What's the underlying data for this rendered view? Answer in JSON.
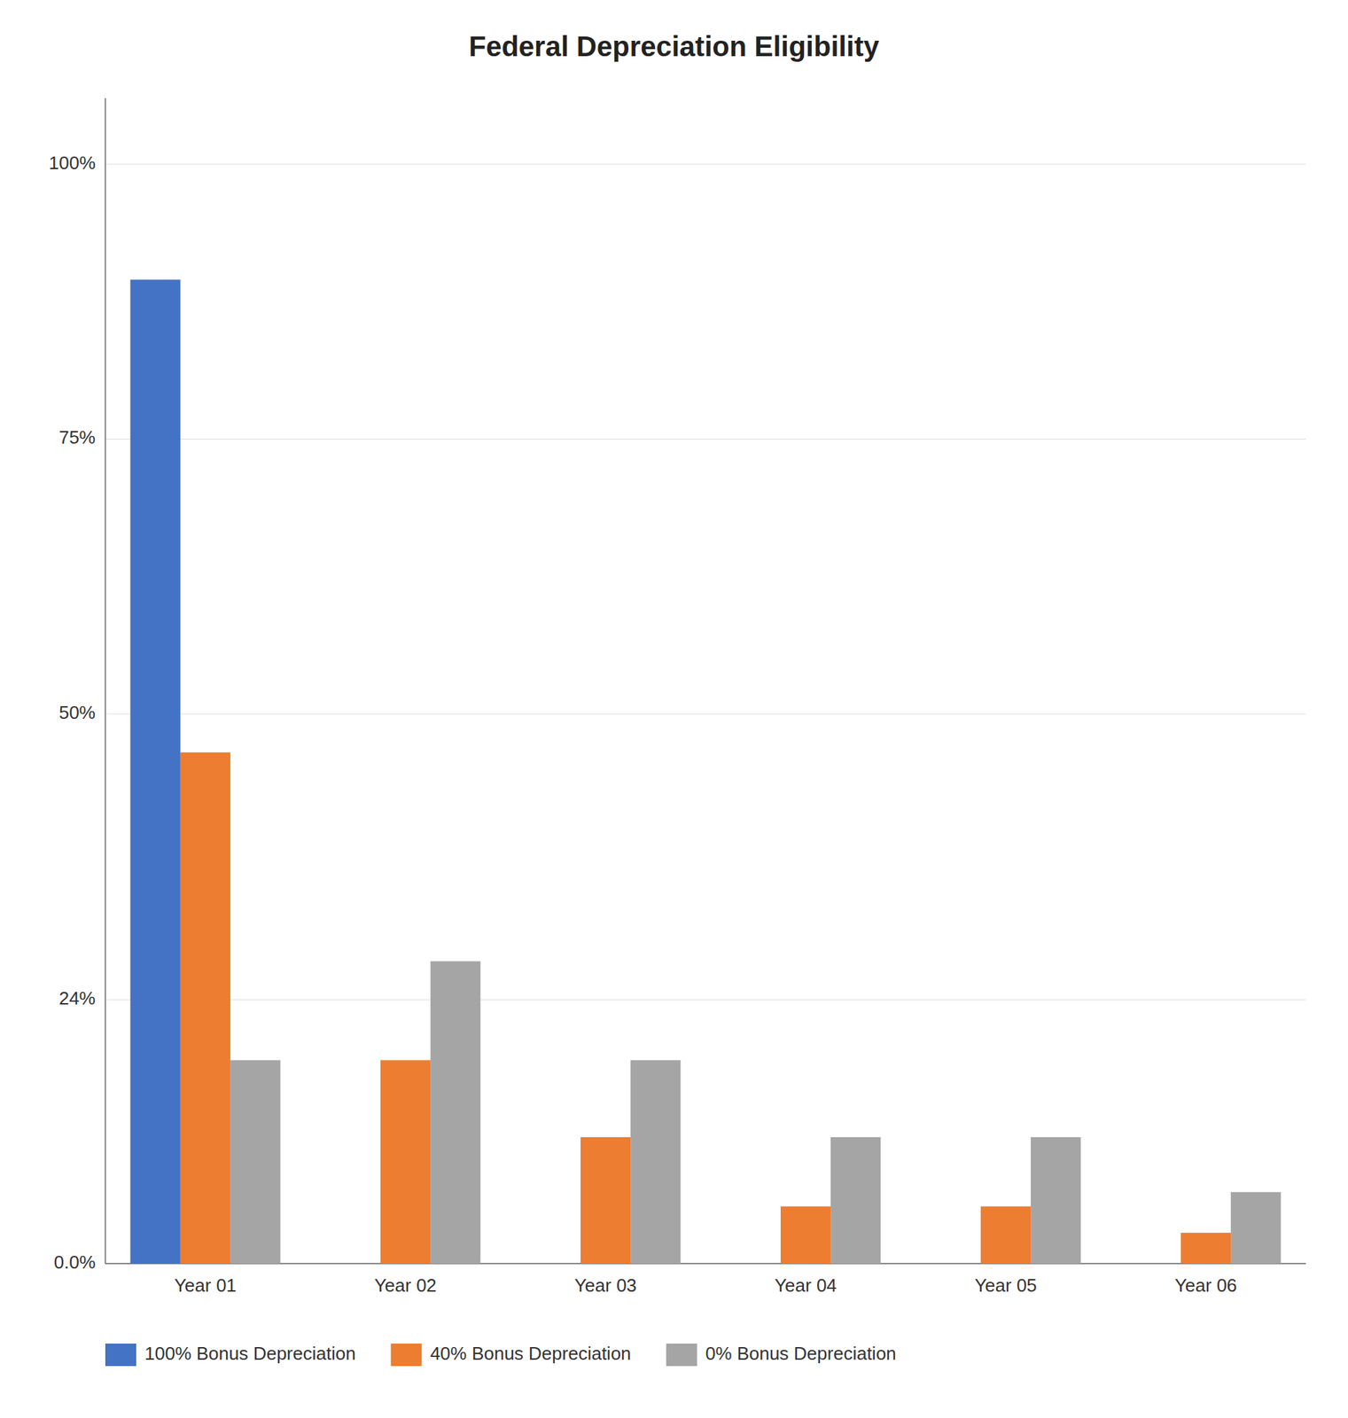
{
  "chart_data": {
    "type": "bar",
    "title": "Federal Depreciation Eligibility",
    "categories": [
      "Year 01",
      "Year 02",
      "Year 03",
      "Year 04",
      "Year 05",
      "Year 06"
    ],
    "series": [
      {
        "name": "100% Bonus Depreciation",
        "color": "#4472c4",
        "values": [
          0.895,
          0,
          0,
          0,
          0,
          0
        ]
      },
      {
        "name": "40% Bonus Depreciation",
        "color": "#ed7d31",
        "values": [
          0.465,
          0.185,
          0.115,
          0.052,
          0.052,
          0.028
        ]
      },
      {
        "name": "0% Bonus Depreciation",
        "color": "#a5a5a5",
        "values": [
          0.185,
          0.275,
          0.185,
          0.115,
          0.115,
          0.065
        ]
      }
    ],
    "ylim": [
      0,
      1.06
    ],
    "yticks": [
      {
        "value": 0.0,
        "label": "0.0%"
      },
      {
        "value": 0.24,
        "label": "24%"
      },
      {
        "value": 0.5,
        "label": "50%"
      },
      {
        "value": 0.75,
        "label": "75%"
      },
      {
        "value": 1.0,
        "label": "100%"
      }
    ],
    "grid": true,
    "legend": "bottom"
  }
}
